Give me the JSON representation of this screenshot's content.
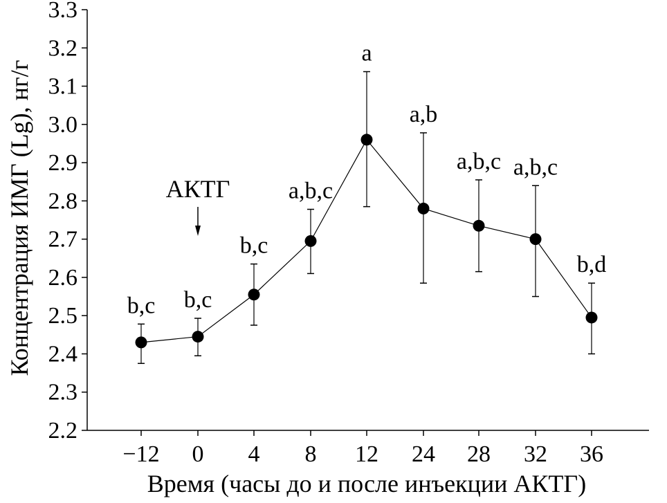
{
  "chart_data": {
    "type": "line",
    "xlabel": "Время (часы до и после инъекции АКТГ)",
    "ylabel": "Концентрация ИМГ (Lg), нг/г",
    "ylim": [
      2.2,
      3.3
    ],
    "categories": [
      "−12",
      "0",
      "4",
      "8",
      "12",
      "24",
      "28",
      "32",
      "36"
    ],
    "series": [
      {
        "values": [
          2.43,
          2.445,
          2.555,
          2.695,
          2.96,
          2.78,
          2.735,
          2.7,
          2.495
        ],
        "error_low": [
          2.375,
          2.395,
          2.475,
          2.61,
          2.785,
          2.585,
          2.615,
          2.55,
          2.4
        ],
        "error_high": [
          2.478,
          2.493,
          2.635,
          2.778,
          3.138,
          2.978,
          2.855,
          2.84,
          2.585
        ],
        "point_labels": [
          "b,c",
          "b,c",
          "b,c",
          "a,b,c",
          "a",
          "a,b",
          "a,b,c",
          "a,b,c",
          "b,d"
        ]
      }
    ],
    "yticks": [
      "2.2",
      "2.3",
      "2.4",
      "2.5",
      "2.6",
      "2.7",
      "2.8",
      "2.9",
      "3.0",
      "3.1",
      "3.2",
      "3.3"
    ],
    "annotations": [
      {
        "text": "АКТГ",
        "category": "0",
        "arrow": "down"
      }
    ],
    "grid": false,
    "legend": "none"
  }
}
